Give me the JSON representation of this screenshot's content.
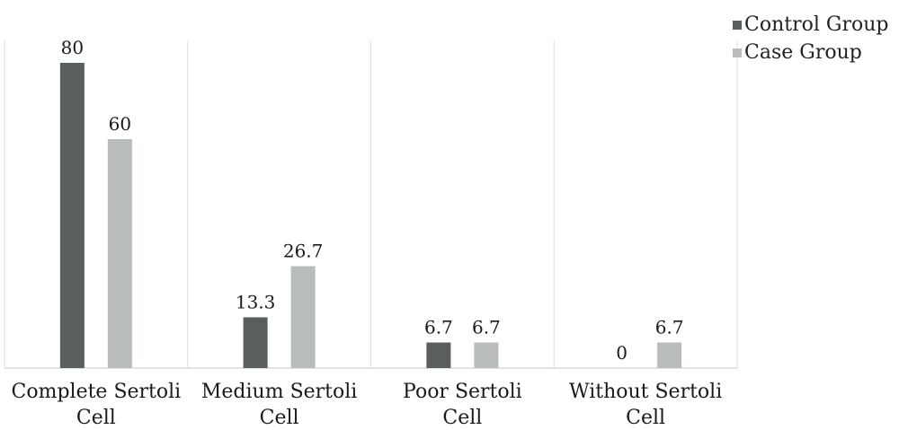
{
  "chart_data": {
    "type": "bar",
    "categories": [
      [
        "Complete Sertoli",
        "Cell"
      ],
      [
        "Medium Sertoli",
        "Cell"
      ],
      [
        "Poor Sertoli",
        "Cell"
      ],
      [
        "Without Sertoli",
        "Cell"
      ]
    ],
    "series": [
      {
        "name": "Control Group",
        "values": [
          80,
          13.3,
          6.7,
          0
        ],
        "color": "#595f5f"
      },
      {
        "name": "Case Group",
        "values": [
          60,
          26.7,
          6.7,
          6.7
        ],
        "color": "#b8bcbb"
      }
    ],
    "data_labels": [
      [
        "80",
        "13.3",
        "6.7",
        "0"
      ],
      [
        "60",
        "26.7",
        "6.7",
        "6.7"
      ]
    ],
    "ylim": [
      0,
      80
    ],
    "grid": "vertical category separators",
    "legend": "top-right"
  },
  "legend": {
    "items": [
      {
        "label": "Control Group",
        "color": "#595f5f"
      },
      {
        "label": "Case Group",
        "color": "#b8bcbb"
      }
    ]
  }
}
